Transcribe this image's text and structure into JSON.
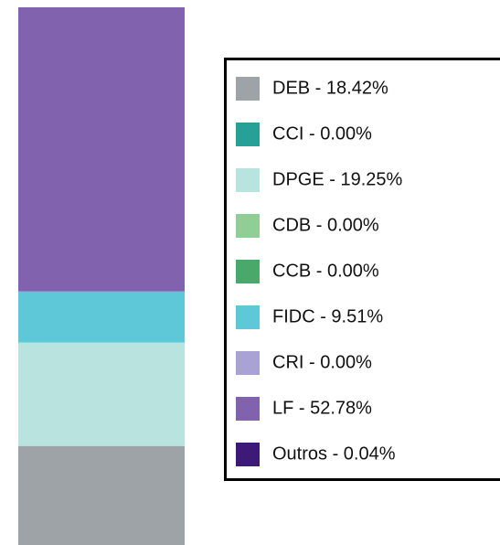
{
  "chart_data": {
    "type": "bar",
    "stacked": true,
    "ylim": [
      0,
      100
    ],
    "series": [
      {
        "name": "DEB - 18.42%",
        "color": "#9ea3a8",
        "values": [
          18.42
        ]
      },
      {
        "name": "CCI - 0.00%",
        "color": "#27a198",
        "values": [
          0.0
        ]
      },
      {
        "name": "DPGE - 19.25%",
        "color": "#b9e3de",
        "values": [
          19.25
        ]
      },
      {
        "name": "CDB - 0.00%",
        "color": "#8fcf95",
        "values": [
          0.0
        ]
      },
      {
        "name": "CCB - 0.00%",
        "color": "#4aa86b",
        "values": [
          0.0
        ]
      },
      {
        "name": "FIDC - 9.51%",
        "color": "#5ec8d8",
        "values": [
          9.51
        ]
      },
      {
        "name": "CRI - 0.00%",
        "color": "#a9a2d4",
        "values": [
          0.0
        ]
      },
      {
        "name": "LF - 52.78%",
        "color": "#8062ae",
        "values": [
          52.78
        ]
      },
      {
        "name": "Outros - 0.04%",
        "color": "#3d1a78",
        "values": [
          0.04
        ]
      }
    ]
  }
}
